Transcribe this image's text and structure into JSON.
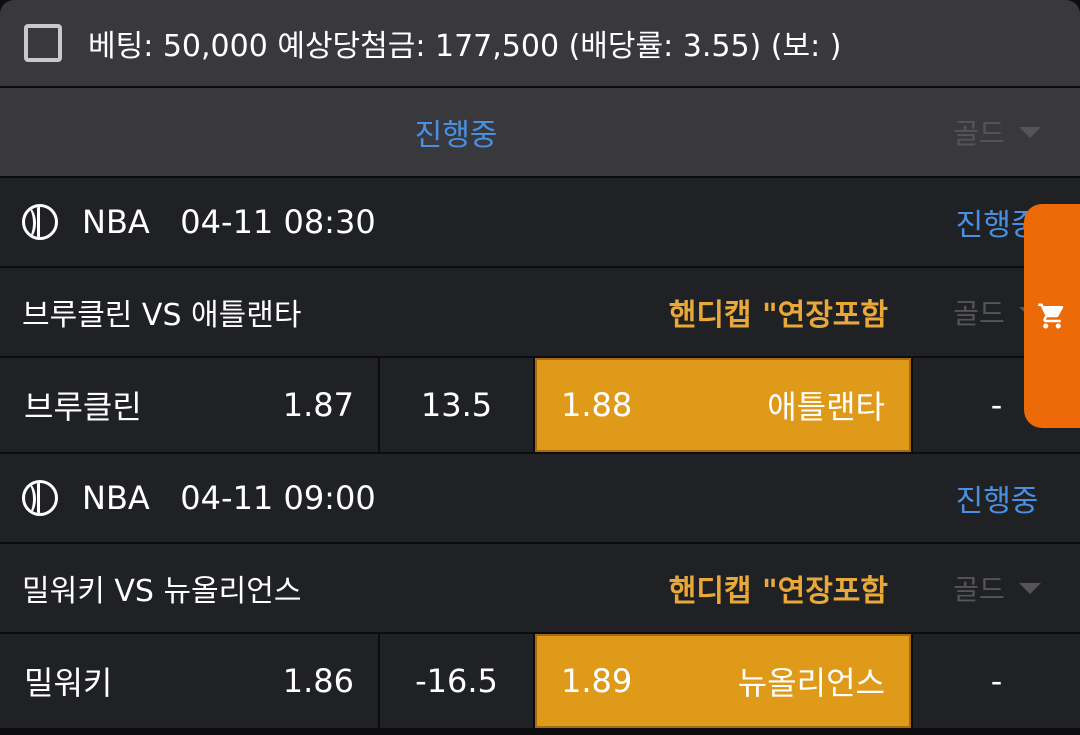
{
  "header": {
    "summary": "베팅: 50,000 예상당첨금: 177,500 (배당률: 3.55) (보: )"
  },
  "tab": {
    "status": "진행중",
    "filter": "골드"
  },
  "games": [
    {
      "league": "NBA",
      "datetime": "04-11 08:30",
      "status": "진행중",
      "title": "브루클린 VS 애틀랜타",
      "market": "핸디캡 \"연장포함",
      "filter": "골드",
      "home": "브루클린",
      "home_odds": "1.87",
      "line": "13.5",
      "away_odds": "1.88",
      "away": "애틀랜타",
      "extra": "-"
    },
    {
      "league": "NBA",
      "datetime": "04-11 09:00",
      "status": "진행중",
      "title": "밀워키 VS 뉴올리언스",
      "market": "핸디캡 \"연장포함",
      "filter": "골드",
      "home": "밀워키",
      "home_odds": "1.86",
      "line": "-16.5",
      "away_odds": "1.89",
      "away": "뉴올리언스",
      "extra": "-"
    }
  ],
  "colors": {
    "accent_blue": "#4a90e2",
    "gold": "#e09a1a",
    "cart": "#ec6a07"
  },
  "cart_icon": "shopping-cart-icon"
}
